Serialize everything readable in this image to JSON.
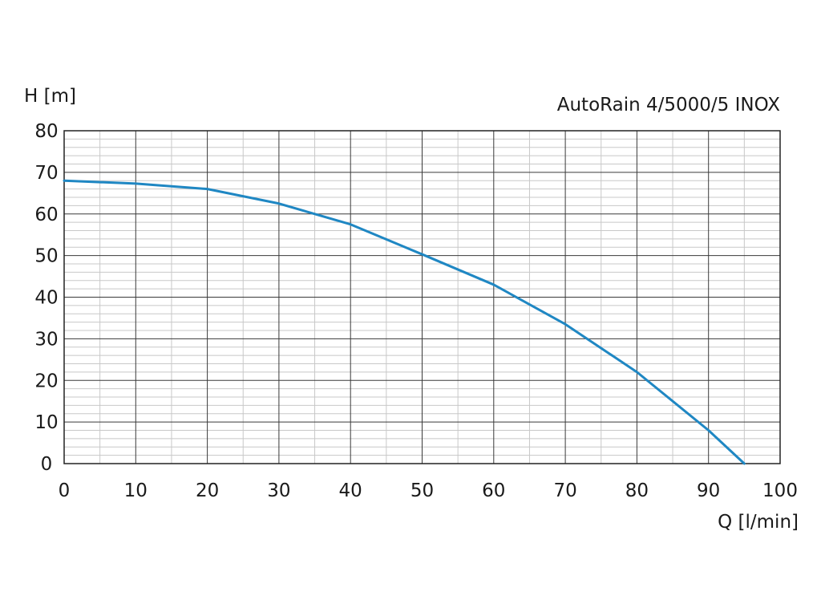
{
  "chart_data": {
    "type": "line",
    "title": "AutoRain 4/5000/5 INOX",
    "xlabel": "Q [l/min]",
    "ylabel": "H [m]",
    "xlim": [
      0,
      100
    ],
    "ylim": [
      0,
      80
    ],
    "x_ticks": [
      "0",
      "10",
      "20",
      "30",
      "40",
      "50",
      "60",
      "70",
      "80",
      "90",
      "100"
    ],
    "y_ticks": [
      "0",
      "10",
      "20",
      "30",
      "40",
      "50",
      "60",
      "70",
      "80"
    ],
    "grid": true,
    "series": [
      {
        "color": "#1f87c3",
        "x": [
          0,
          10,
          20,
          30,
          40,
          50,
          60,
          70,
          80,
          90,
          95
        ],
        "y": [
          68,
          67.3,
          66,
          62.5,
          57.5,
          50.3,
          43,
          33.5,
          22,
          8,
          0
        ]
      }
    ]
  }
}
